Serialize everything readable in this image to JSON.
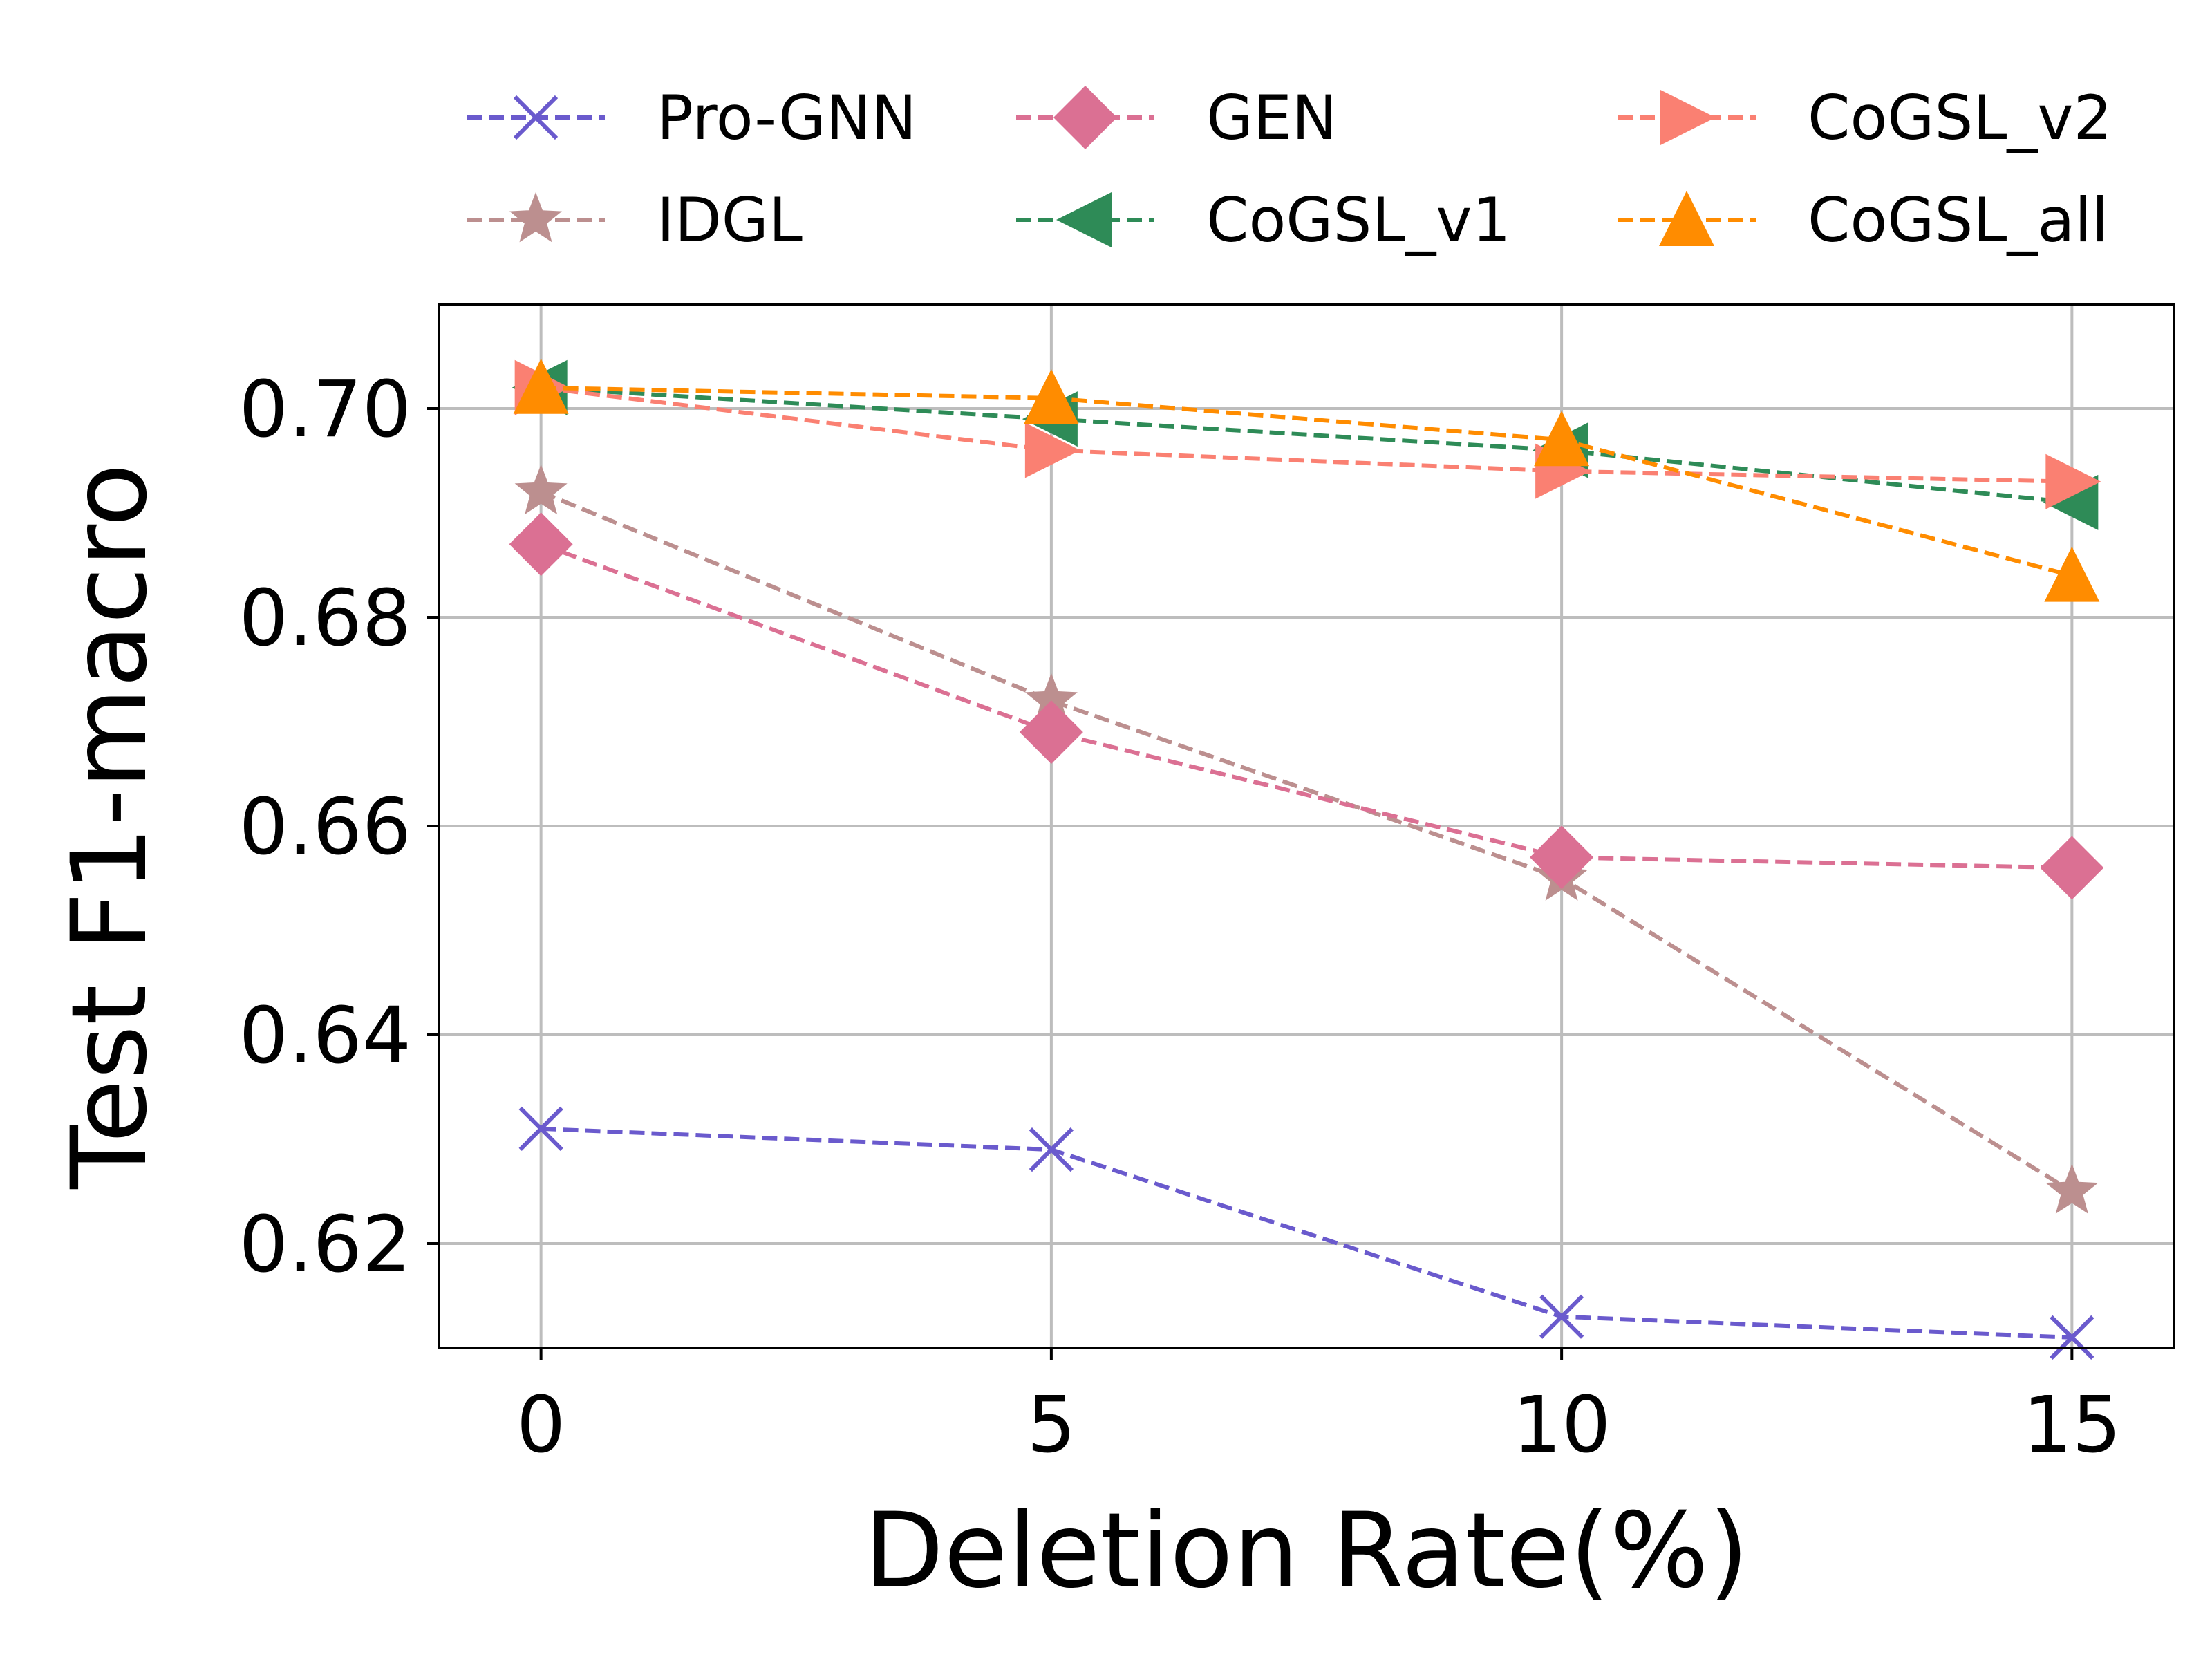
{
  "chart_data": {
    "type": "line",
    "title": "",
    "xlabel": "Deletion Rate(%)",
    "ylabel": "Test F1-macro",
    "x": [
      0,
      5,
      10,
      15
    ],
    "xticks": [
      "0",
      "5",
      "10",
      "15"
    ],
    "yticks": [
      "0.62",
      "0.64",
      "0.66",
      "0.68",
      "0.70"
    ],
    "xlim": [
      -1,
      16
    ],
    "ylim": [
      0.61,
      0.71
    ],
    "grid": true,
    "legend_position": "top",
    "series": [
      {
        "name": "Pro-GNN",
        "values": [
          0.631,
          0.629,
          0.613,
          0.611
        ],
        "color": "#6a5acd",
        "marker": "x"
      },
      {
        "name": "IDGL",
        "values": [
          0.692,
          0.672,
          0.655,
          0.625
        ],
        "color": "#bc8f8f",
        "marker": "star"
      },
      {
        "name": "GEN",
        "values": [
          0.687,
          0.669,
          0.657,
          0.656
        ],
        "color": "#db7093",
        "marker": "diamond"
      },
      {
        "name": "CoGSL_v1",
        "values": [
          0.702,
          0.699,
          0.696,
          0.691
        ],
        "color": "#2e8b57",
        "marker": "triangle-left"
      },
      {
        "name": "CoGSL_v2",
        "values": [
          0.702,
          0.696,
          0.694,
          0.693
        ],
        "color": "#fa8072",
        "marker": "triangle-right"
      },
      {
        "name": "CoGSL_all",
        "values": [
          0.702,
          0.701,
          0.697,
          0.684
        ],
        "color": "#ff8c00",
        "marker": "triangle-up"
      }
    ]
  }
}
